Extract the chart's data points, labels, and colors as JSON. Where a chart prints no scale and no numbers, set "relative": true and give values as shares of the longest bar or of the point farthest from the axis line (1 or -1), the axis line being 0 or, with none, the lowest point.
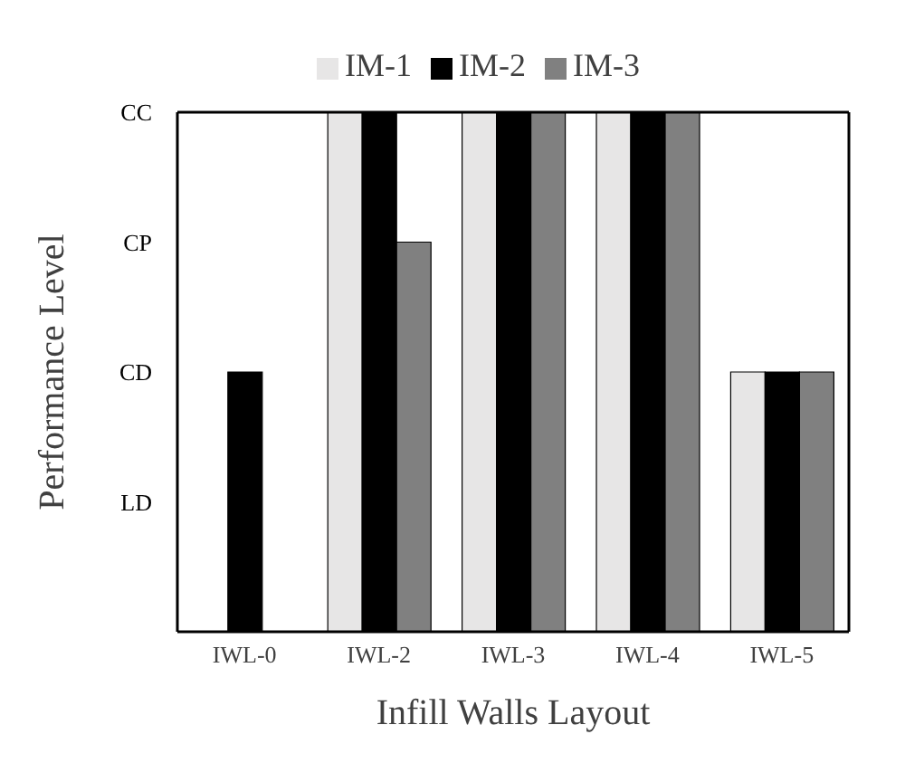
{
  "chart_data": {
    "type": "bar",
    "xlabel": "Infill Walls Layout",
    "ylabel": "Performance Level",
    "relative": true,
    "categories": [
      "IWL-0",
      "IWL-2",
      "IWL-3",
      "IWL-4",
      "IWL-5"
    ],
    "series": [
      {
        "name": "IM-1",
        "color": "#e7e6e6",
        "values": [
          0,
          1,
          1,
          1,
          0.5
        ]
      },
      {
        "name": "IM-2",
        "color": "#000000",
        "values": [
          0.5,
          1,
          1,
          1,
          0.5
        ]
      },
      {
        "name": "IM-3",
        "color": "#808080",
        "values": [
          0,
          0.75,
          1,
          1,
          0.5
        ]
      }
    ],
    "annotations": [
      "LD",
      "CD",
      "CP",
      "CC"
    ],
    "grid": false,
    "legend": "top"
  }
}
